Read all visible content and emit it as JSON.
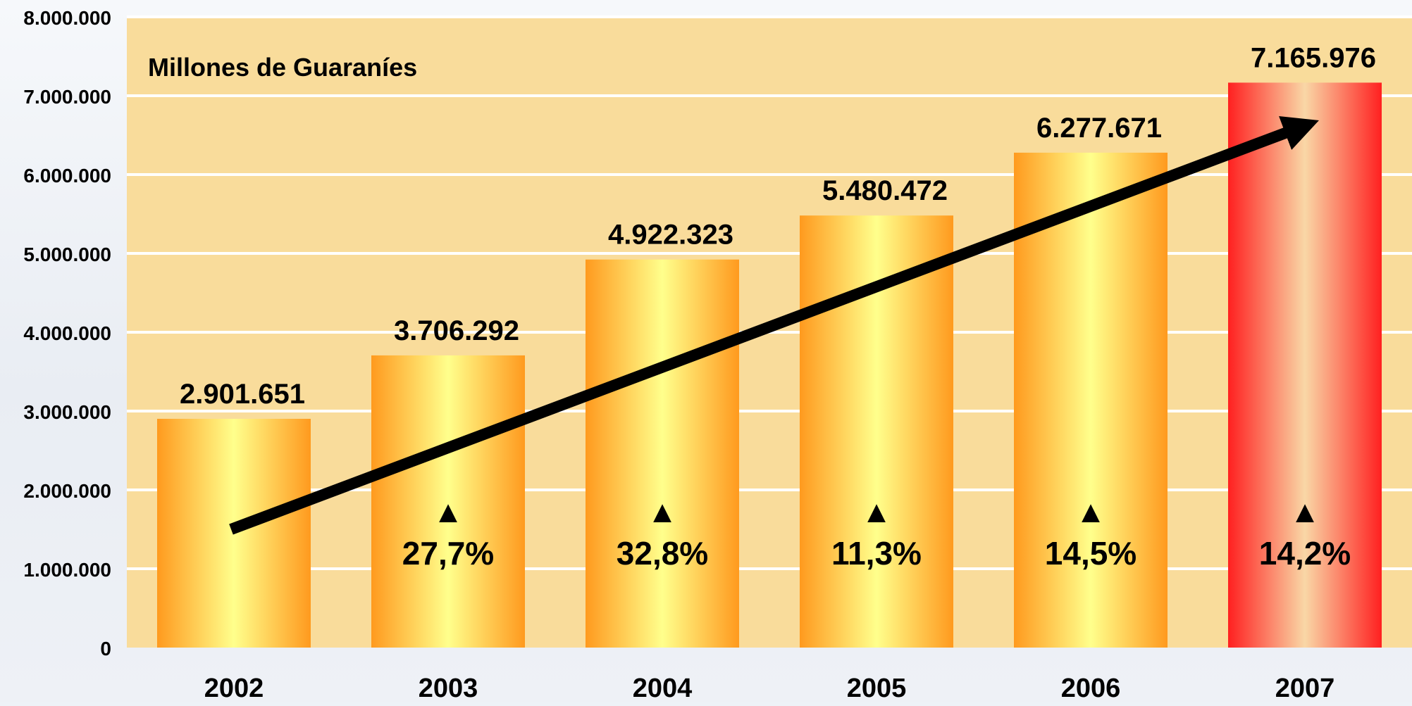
{
  "chart_data": {
    "type": "bar",
    "unit_label": "Millones de Guaraníes",
    "categories": [
      "2002",
      "2003",
      "2004",
      "2005",
      "2006",
      "2007"
    ],
    "values": [
      2901651,
      3706292,
      4922323,
      5480472,
      6277671,
      7165976
    ],
    "value_labels": [
      "2.901.651",
      "3.706.292",
      "4.922.323",
      "5.480.472",
      "6.277.671",
      "7.165.976"
    ],
    "growth_labels": [
      "",
      "27,7%",
      "32,8%",
      "11,3%",
      "14,5%",
      "14,2%"
    ],
    "growth_marker": "▲",
    "ylim": [
      0,
      8000000
    ],
    "y_ticks": [
      0,
      1000000,
      2000000,
      3000000,
      4000000,
      5000000,
      6000000,
      7000000,
      8000000
    ],
    "y_tick_labels": [
      "0",
      "1.000.000",
      "2.000.000",
      "3.000.000",
      "4.000.000",
      "5.000.000",
      "6.000.000",
      "7.000.000",
      "8.000.000"
    ],
    "grid": true,
    "trend_arrow": true,
    "highlight_category": "2007",
    "colors": {
      "plot_background": "#f9dc9b",
      "grid": "#ffffff",
      "bar_edge": "#ff9a1e",
      "bar_center": "#ffff8c",
      "highlight_edge": "#ff2020",
      "highlight_center": "#f9d7a6",
      "arrow": "#000000",
      "text": "#000000"
    }
  }
}
